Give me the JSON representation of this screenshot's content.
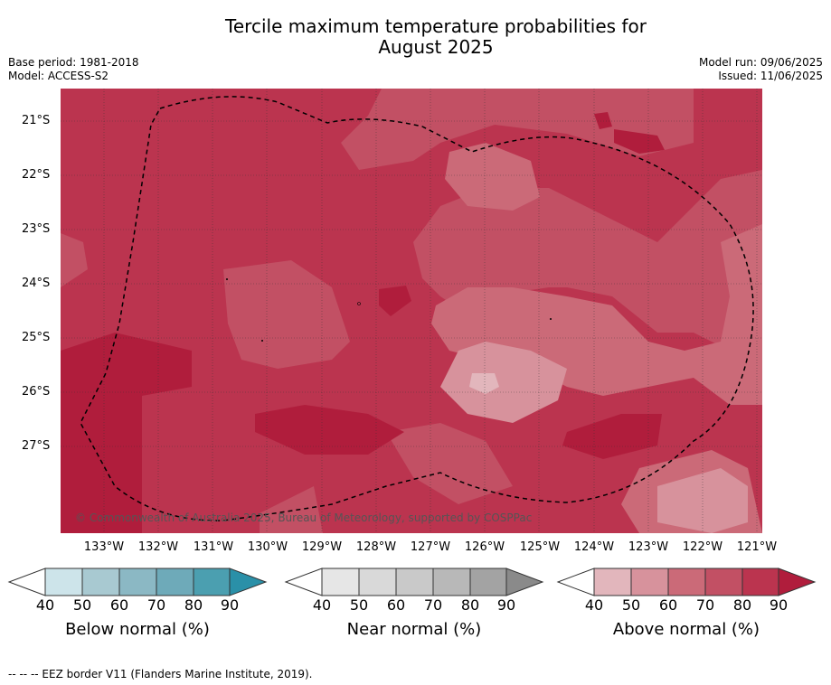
{
  "title_line1": "Tercile maximum temperature probabilities for",
  "title_line2": "August 2025",
  "meta_left": {
    "base_period": "Base period: 1981-2018",
    "model": "Model: ACCESS-S2"
  },
  "meta_right": {
    "model_run": "Model run: 09/06/2025",
    "issued": "Issued: 11/06/2025"
  },
  "map": {
    "copyright": "© Commonwealth of Australia 2025, Bureau of Meteorology, supported by COSPPac",
    "lat_labels": [
      "21°S",
      "22°S",
      "23°S",
      "24°S",
      "25°S",
      "26°S",
      "27°S"
    ],
    "lon_labels": [
      "133°W",
      "132°W",
      "131°W",
      "130°W",
      "129°W",
      "128°W",
      "127°W",
      "126°W",
      "125°W",
      "124°W",
      "123°W",
      "122°W",
      "121°W"
    ],
    "colors": {
      "above_80_90": "#bb344f",
      "above_70_80": "#c25064",
      "above_60_70": "#cb6a78",
      "above_50_60": "#d7929c",
      "above_40_50": "#e2b6bc",
      "above_90plus": "#b01d3c"
    }
  },
  "colorbars": [
    {
      "label": "Below normal (%)",
      "ticks": [
        "40",
        "50",
        "60",
        "70",
        "80",
        "90"
      ],
      "colors": [
        "#cde4ea",
        "#a8c9d1",
        "#8bb8c4",
        "#6eaab9",
        "#4b9fb0",
        "#2a90a8"
      ]
    },
    {
      "label": "Near normal (%)",
      "ticks": [
        "40",
        "50",
        "60",
        "70",
        "80",
        "90"
      ],
      "colors": [
        "#e6e6e6",
        "#d9d9d9",
        "#c9c9c9",
        "#b8b8b8",
        "#a3a3a3",
        "#8a8a8a"
      ]
    },
    {
      "label": "Above normal (%)",
      "ticks": [
        "40",
        "50",
        "60",
        "70",
        "80",
        "90"
      ],
      "colors": [
        "#e2b6bc",
        "#d7929c",
        "#cb6a78",
        "#c25064",
        "#bb344f",
        "#b01d3c"
      ]
    }
  ],
  "footnote": "-- -- -- EEZ border V11 (Flanders Marine Institute, 2019)."
}
